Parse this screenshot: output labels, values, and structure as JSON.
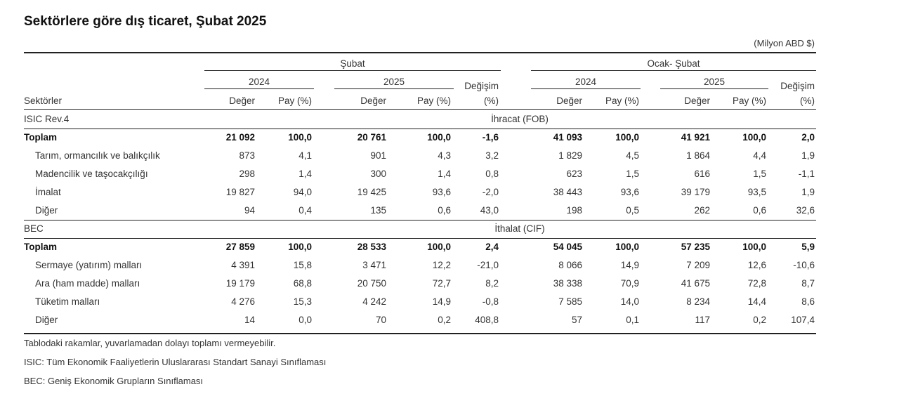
{
  "title": "Sektörlere göre dış ticaret, Şubat 2025",
  "unit": "(Milyon ABD $)",
  "header": {
    "group_subat": "Şubat",
    "group_ocak_subat": "Ocak- Şubat",
    "year_2024": "2024",
    "year_2025": "2025",
    "degisim": "Değişim",
    "sektorler": "Sektörler",
    "deger": "Değer",
    "pay": "Pay (%)",
    "pct": "(%)"
  },
  "sections": [
    {
      "label": "ISIC  Rev.4",
      "title": "İhracat (FOB)",
      "rows": [
        {
          "name": "Toplam",
          "bold": true,
          "values": [
            "21 092",
            "100,0",
            "20 761",
            "100,0",
            "-1,6",
            "41 093",
            "100,0",
            "41 921",
            "100,0",
            "2,0"
          ]
        },
        {
          "name": "Tarım, ormancılık ve balıkçılık",
          "bold": false,
          "values": [
            "873",
            "4,1",
            "901",
            "4,3",
            "3,2",
            "1 829",
            "4,5",
            "1 864",
            "4,4",
            "1,9"
          ]
        },
        {
          "name": "Madencilik ve taşocakçılığı",
          "bold": false,
          "values": [
            "298",
            "1,4",
            "300",
            "1,4",
            "0,8",
            "623",
            "1,5",
            "616",
            "1,5",
            "-1,1"
          ]
        },
        {
          "name": "İmalat",
          "bold": false,
          "values": [
            "19 827",
            "94,0",
            "19 425",
            "93,6",
            "-2,0",
            "38 443",
            "93,6",
            "39 179",
            "93,5",
            "1,9"
          ]
        },
        {
          "name": "Diğer",
          "bold": false,
          "values": [
            "94",
            "0,4",
            "135",
            "0,6",
            "43,0",
            "198",
            "0,5",
            "262",
            "0,6",
            "32,6"
          ]
        }
      ]
    },
    {
      "label": "BEC",
      "title": "İthalat (CIF)",
      "rows": [
        {
          "name": "Toplam",
          "bold": true,
          "values": [
            "27 859",
            "100,0",
            "28 533",
            "100,0",
            "2,4",
            "54 045",
            "100,0",
            "57 235",
            "100,0",
            "5,9"
          ]
        },
        {
          "name": "Sermaye (yatırım) malları",
          "bold": false,
          "values": [
            "4 391",
            "15,8",
            "3 471",
            "12,2",
            "-21,0",
            "8 066",
            "14,9",
            "7 209",
            "12,6",
            "-10,6"
          ]
        },
        {
          "name": "Ara (ham madde) malları",
          "bold": false,
          "values": [
            "19 179",
            "68,8",
            "20 750",
            "72,7",
            "8,2",
            "38 338",
            "70,9",
            "41 675",
            "72,8",
            "8,7"
          ]
        },
        {
          "name": "Tüketim malları",
          "bold": false,
          "values": [
            "4 276",
            "15,3",
            "4 242",
            "14,9",
            "-0,8",
            "7 585",
            "14,0",
            "8 234",
            "14,4",
            "8,6"
          ]
        },
        {
          "name": "Diğer",
          "bold": false,
          "values": [
            "14",
            "0,0",
            "70",
            "0,2",
            "408,8",
            "57",
            "0,1",
            "117",
            "0,2",
            "107,4"
          ]
        }
      ]
    }
  ],
  "notes": [
    "Tablodaki rakamlar, yuvarlamadan dolayı toplamı vermeyebilir.",
    "ISIC: Tüm Ekonomik Faaliyetlerin Uluslararası Standart Sanayi Sınıflaması",
    "BEC: Geniş Ekonomik Grupların Sınıflaması"
  ]
}
